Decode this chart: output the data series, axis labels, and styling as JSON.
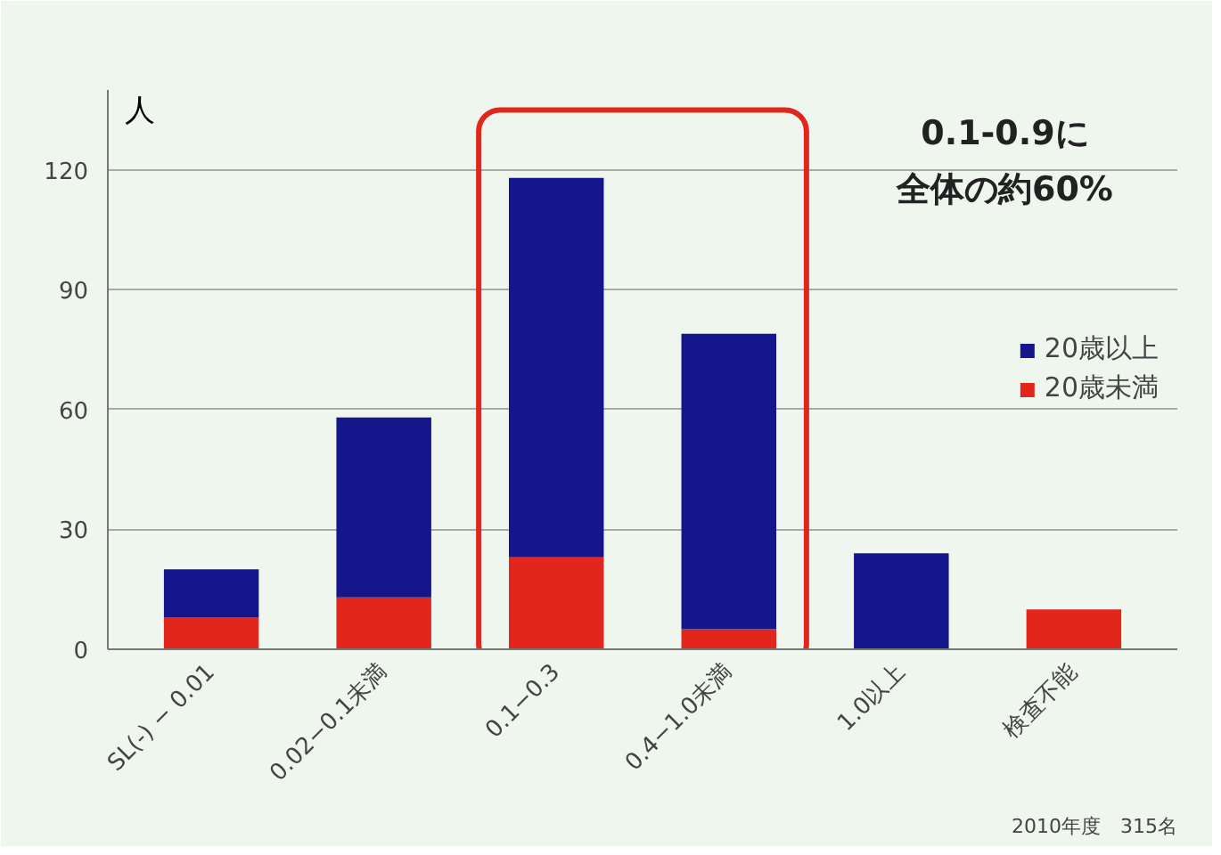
{
  "chart_data": {
    "type": "bar",
    "stacked": true,
    "ylabel": "人",
    "categories": [
      "SL(-) − 0.01",
      "0.02−0.1未満",
      "0.1−0.3",
      "0.4−1.0未満",
      "1.0以上",
      "検査不能"
    ],
    "series": [
      {
        "name": "20歳未満",
        "color": "#e3261c",
        "values": [
          8,
          13,
          23,
          5,
          0,
          10
        ]
      },
      {
        "name": "20歳以上",
        "color": "#15168c",
        "values": [
          12,
          45,
          95,
          74,
          24,
          0
        ]
      }
    ],
    "ylim": [
      0,
      140
    ],
    "yticks": [
      0,
      30,
      60,
      90,
      120
    ],
    "grid": "y",
    "legend": "right",
    "annotations": [
      "0.1-0.9に",
      "全体の約60%",
      "2010年度　315名"
    ]
  }
}
